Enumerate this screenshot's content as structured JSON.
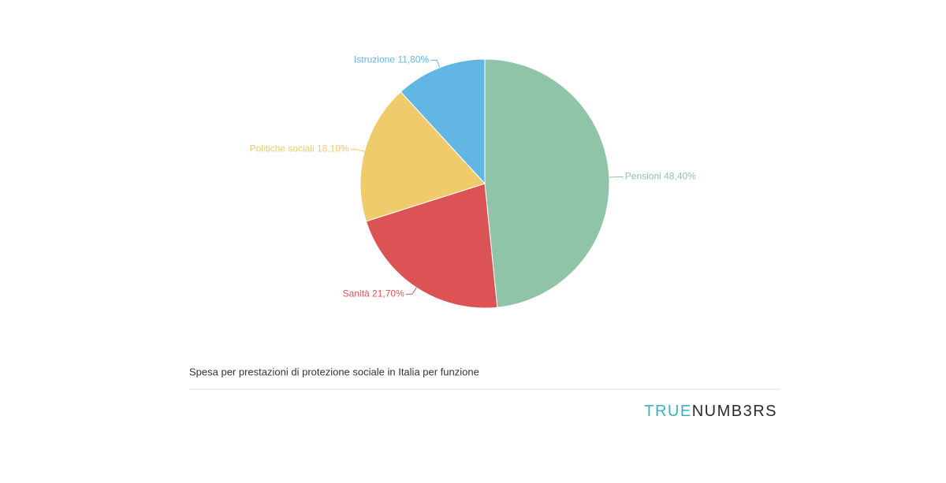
{
  "chart_data": {
    "type": "pie",
    "title": "Spesa per prestazioni di protezione sociale in Italia per funzione",
    "categories": [
      "Pensioni",
      "Sanità",
      "Politiche sociali",
      "Istruzione"
    ],
    "values": [
      48.4,
      21.7,
      18.1,
      11.8
    ],
    "value_labels": [
      "48,40%",
      "21,70%",
      "18,10%",
      "11,80%"
    ],
    "colors": [
      "#8fc4a8",
      "#dc5356",
      "#efcb6c",
      "#62b6e4"
    ]
  },
  "brand": {
    "first": "TRUE",
    "second": "NUMB3RS"
  }
}
